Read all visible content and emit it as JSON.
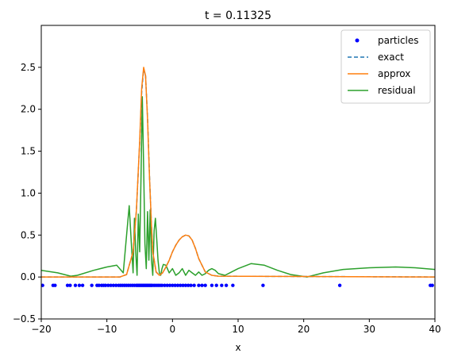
{
  "chart_data": {
    "type": "line",
    "title": "t = 0.11325",
    "xlabel": "x",
    "ylabel": "",
    "xlim": [
      -20,
      40
    ],
    "ylim": [
      -0.5,
      3.0
    ],
    "xticks": [
      -20,
      -10,
      0,
      10,
      20,
      30,
      40
    ],
    "yticks": [
      -0.5,
      0.0,
      0.5,
      1.0,
      1.5,
      2.0,
      2.5
    ],
    "xtick_labels": [
      "−20",
      "−10",
      "0",
      "10",
      "20",
      "30",
      "40"
    ],
    "ytick_labels": [
      "−0.5",
      "0.0",
      "0.5",
      "1.0",
      "1.5",
      "2.0",
      "2.5"
    ],
    "grid": false,
    "legend_position": "top-right",
    "series": [
      {
        "name": "particles",
        "style": "scatter",
        "color": "#0000ff",
        "y": -0.1,
        "x": [
          -19.8,
          -18.2,
          -17.9,
          -16.0,
          -15.6,
          -14.8,
          -14.2,
          -13.7,
          -12.3,
          -11.5,
          -11.2,
          -10.8,
          -10.5,
          -10.2,
          -9.8,
          -9.4,
          -9.0,
          -8.6,
          -8.2,
          -7.9,
          -7.6,
          -7.3,
          -7.0,
          -6.7,
          -6.4,
          -6.1,
          -5.8,
          -5.5,
          -5.3,
          -5.1,
          -4.9,
          -4.7,
          -4.5,
          -4.3,
          -4.1,
          -3.9,
          -3.7,
          -3.5,
          -3.3,
          -3.1,
          -2.8,
          -2.5,
          -2.2,
          -1.9,
          -1.6,
          -1.2,
          -0.8,
          -0.4,
          0.0,
          0.4,
          0.8,
          1.2,
          1.6,
          2.0,
          2.4,
          2.8,
          3.3,
          4.0,
          4.5,
          5.0,
          6.0,
          6.7,
          7.5,
          8.2,
          9.2,
          13.8,
          25.5,
          39.3,
          39.6
        ]
      },
      {
        "name": "exact",
        "style": "dashed",
        "color": "#1f77b4",
        "x": [
          -20,
          -8,
          -7,
          -6,
          -5.5,
          -5,
          -4.7,
          -4.4,
          -4.1,
          -3.8,
          -3.5,
          -3.2,
          -3,
          -2.5,
          -2,
          -1.5,
          -1,
          -0.5,
          0,
          0.5,
          1,
          1.5,
          2,
          2.5,
          3,
          3.5,
          4,
          5,
          6,
          7,
          40
        ],
        "y": [
          0.0,
          0.0,
          0.03,
          0.3,
          0.8,
          1.6,
          2.2,
          2.48,
          2.4,
          1.9,
          1.2,
          0.6,
          0.3,
          0.06,
          0.02,
          0.05,
          0.12,
          0.2,
          0.3,
          0.38,
          0.44,
          0.48,
          0.5,
          0.49,
          0.44,
          0.34,
          0.22,
          0.06,
          0.02,
          0.01,
          0.0
        ]
      },
      {
        "name": "approx",
        "style": "solid",
        "color": "#ff7f0e",
        "x": [
          -20,
          -8,
          -7,
          -6,
          -5.5,
          -5,
          -4.7,
          -4.4,
          -4.1,
          -3.8,
          -3.5,
          -3.2,
          -3,
          -2.5,
          -2,
          -1.5,
          -1,
          -0.5,
          0,
          0.5,
          1,
          1.5,
          2,
          2.5,
          3,
          3.5,
          4,
          5,
          6,
          7,
          40
        ],
        "y": [
          0.0,
          0.0,
          0.03,
          0.3,
          0.8,
          1.62,
          2.25,
          2.5,
          2.4,
          1.88,
          1.18,
          0.6,
          0.3,
          0.06,
          0.02,
          0.05,
          0.12,
          0.2,
          0.3,
          0.38,
          0.44,
          0.48,
          0.5,
          0.49,
          0.44,
          0.34,
          0.22,
          0.06,
          0.02,
          0.01,
          0.0
        ]
      },
      {
        "name": "residual",
        "style": "solid",
        "color": "#2ca02c",
        "x": [
          -20,
          -17.5,
          -15.5,
          -14.5,
          -12,
          -10,
          -8.5,
          -7.5,
          -7,
          -6.6,
          -6.2,
          -6,
          -5.8,
          -5.6,
          -5.4,
          -5.2,
          -5.0,
          -4.8,
          -4.6,
          -4.4,
          -4.2,
          -4.0,
          -3.8,
          -3.6,
          -3.4,
          -3.2,
          -3.0,
          -2.8,
          -2.6,
          -2.4,
          -2.2,
          -2.0,
          -1.8,
          -1.6,
          -1.4,
          -1.0,
          -0.5,
          0,
          0.5,
          1,
          1.5,
          2,
          2.5,
          3,
          3.5,
          4,
          4.5,
          5,
          5.5,
          6,
          6.5,
          7,
          8,
          9,
          10,
          12,
          14,
          16,
          18,
          20.5,
          23,
          26,
          30,
          34,
          37,
          40
        ],
        "y": [
          0.08,
          0.05,
          0.01,
          0.02,
          0.08,
          0.12,
          0.14,
          0.05,
          0.5,
          0.85,
          0.3,
          0.05,
          0.7,
          0.3,
          0.02,
          0.75,
          0.3,
          1.2,
          2.15,
          1.3,
          0.4,
          0.1,
          0.78,
          0.2,
          0.8,
          0.2,
          0.02,
          0.55,
          0.7,
          0.45,
          0.2,
          0.05,
          0.02,
          0.1,
          0.15,
          0.14,
          0.05,
          0.1,
          0.02,
          0.05,
          0.1,
          0.02,
          0.08,
          0.05,
          0.02,
          0.06,
          0.02,
          0.04,
          0.08,
          0.1,
          0.08,
          0.04,
          0.02,
          0.06,
          0.1,
          0.16,
          0.14,
          0.08,
          0.03,
          0.0,
          0.05,
          0.09,
          0.11,
          0.12,
          0.11,
          0.09
        ]
      }
    ]
  }
}
